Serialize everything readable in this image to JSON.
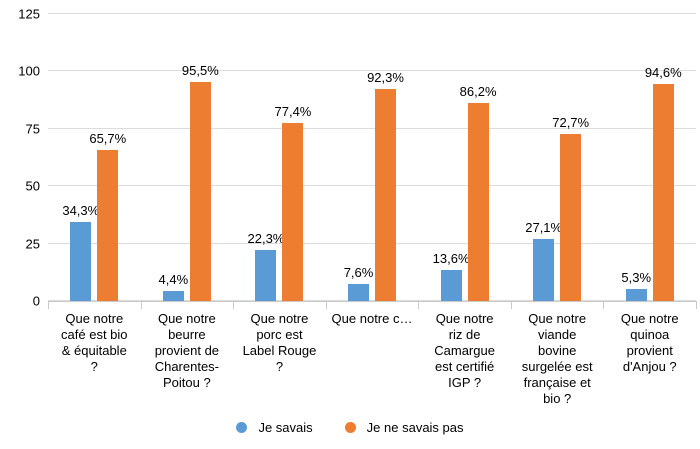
{
  "chart_data": {
    "type": "bar",
    "title": "",
    "xlabel": "",
    "ylabel": "",
    "categories": [
      "Que notre\ncafé est bio\n& équitable\n?",
      "Que notre\nbeurre\nprovient de\nCharentes-\nPoitou ?",
      "Que notre\nporc est\nLabel Rouge\n?",
      "Que notre c…",
      "Que notre\nriz de\nCamargue\nest certifié\nIGP ?",
      "Que notre\nviande\nbovine\nsurgelée est\nfrançaise et\nbio ?",
      "Que notre\nquinoa\nprovient\nd'Anjou ?"
    ],
    "series": [
      {
        "name": "Je savais",
        "color": "#5b9bd5",
        "values": [
          34.3,
          4.4,
          22.3,
          7.6,
          13.6,
          27.1,
          5.3
        ],
        "value_labels": [
          "34,3%",
          "4,4%",
          "22,3%",
          "7,6%",
          "13,6%",
          "27,1%",
          "5,3%"
        ]
      },
      {
        "name": "Je ne savais pas",
        "color": "#ed7d31",
        "values": [
          65.7,
          95.5,
          77.4,
          92.3,
          86.2,
          72.7,
          94.6
        ],
        "value_labels": [
          "65,7%",
          "95,5%",
          "77,4%",
          "92,3%",
          "86,2%",
          "72,7%",
          "94,6%"
        ]
      }
    ],
    "ylim": [
      0,
      125
    ],
    "yticks": [
      0,
      25,
      50,
      75,
      100,
      125
    ],
    "ytick_labels": [
      "0",
      "25",
      "50",
      "75",
      "100",
      "125"
    ],
    "grid": true,
    "legend_position": "bottom"
  },
  "colors": {
    "background": "#ffffff",
    "gridline": "#dcdcdc",
    "axis": "#c9c9c9",
    "text": "#000000"
  }
}
